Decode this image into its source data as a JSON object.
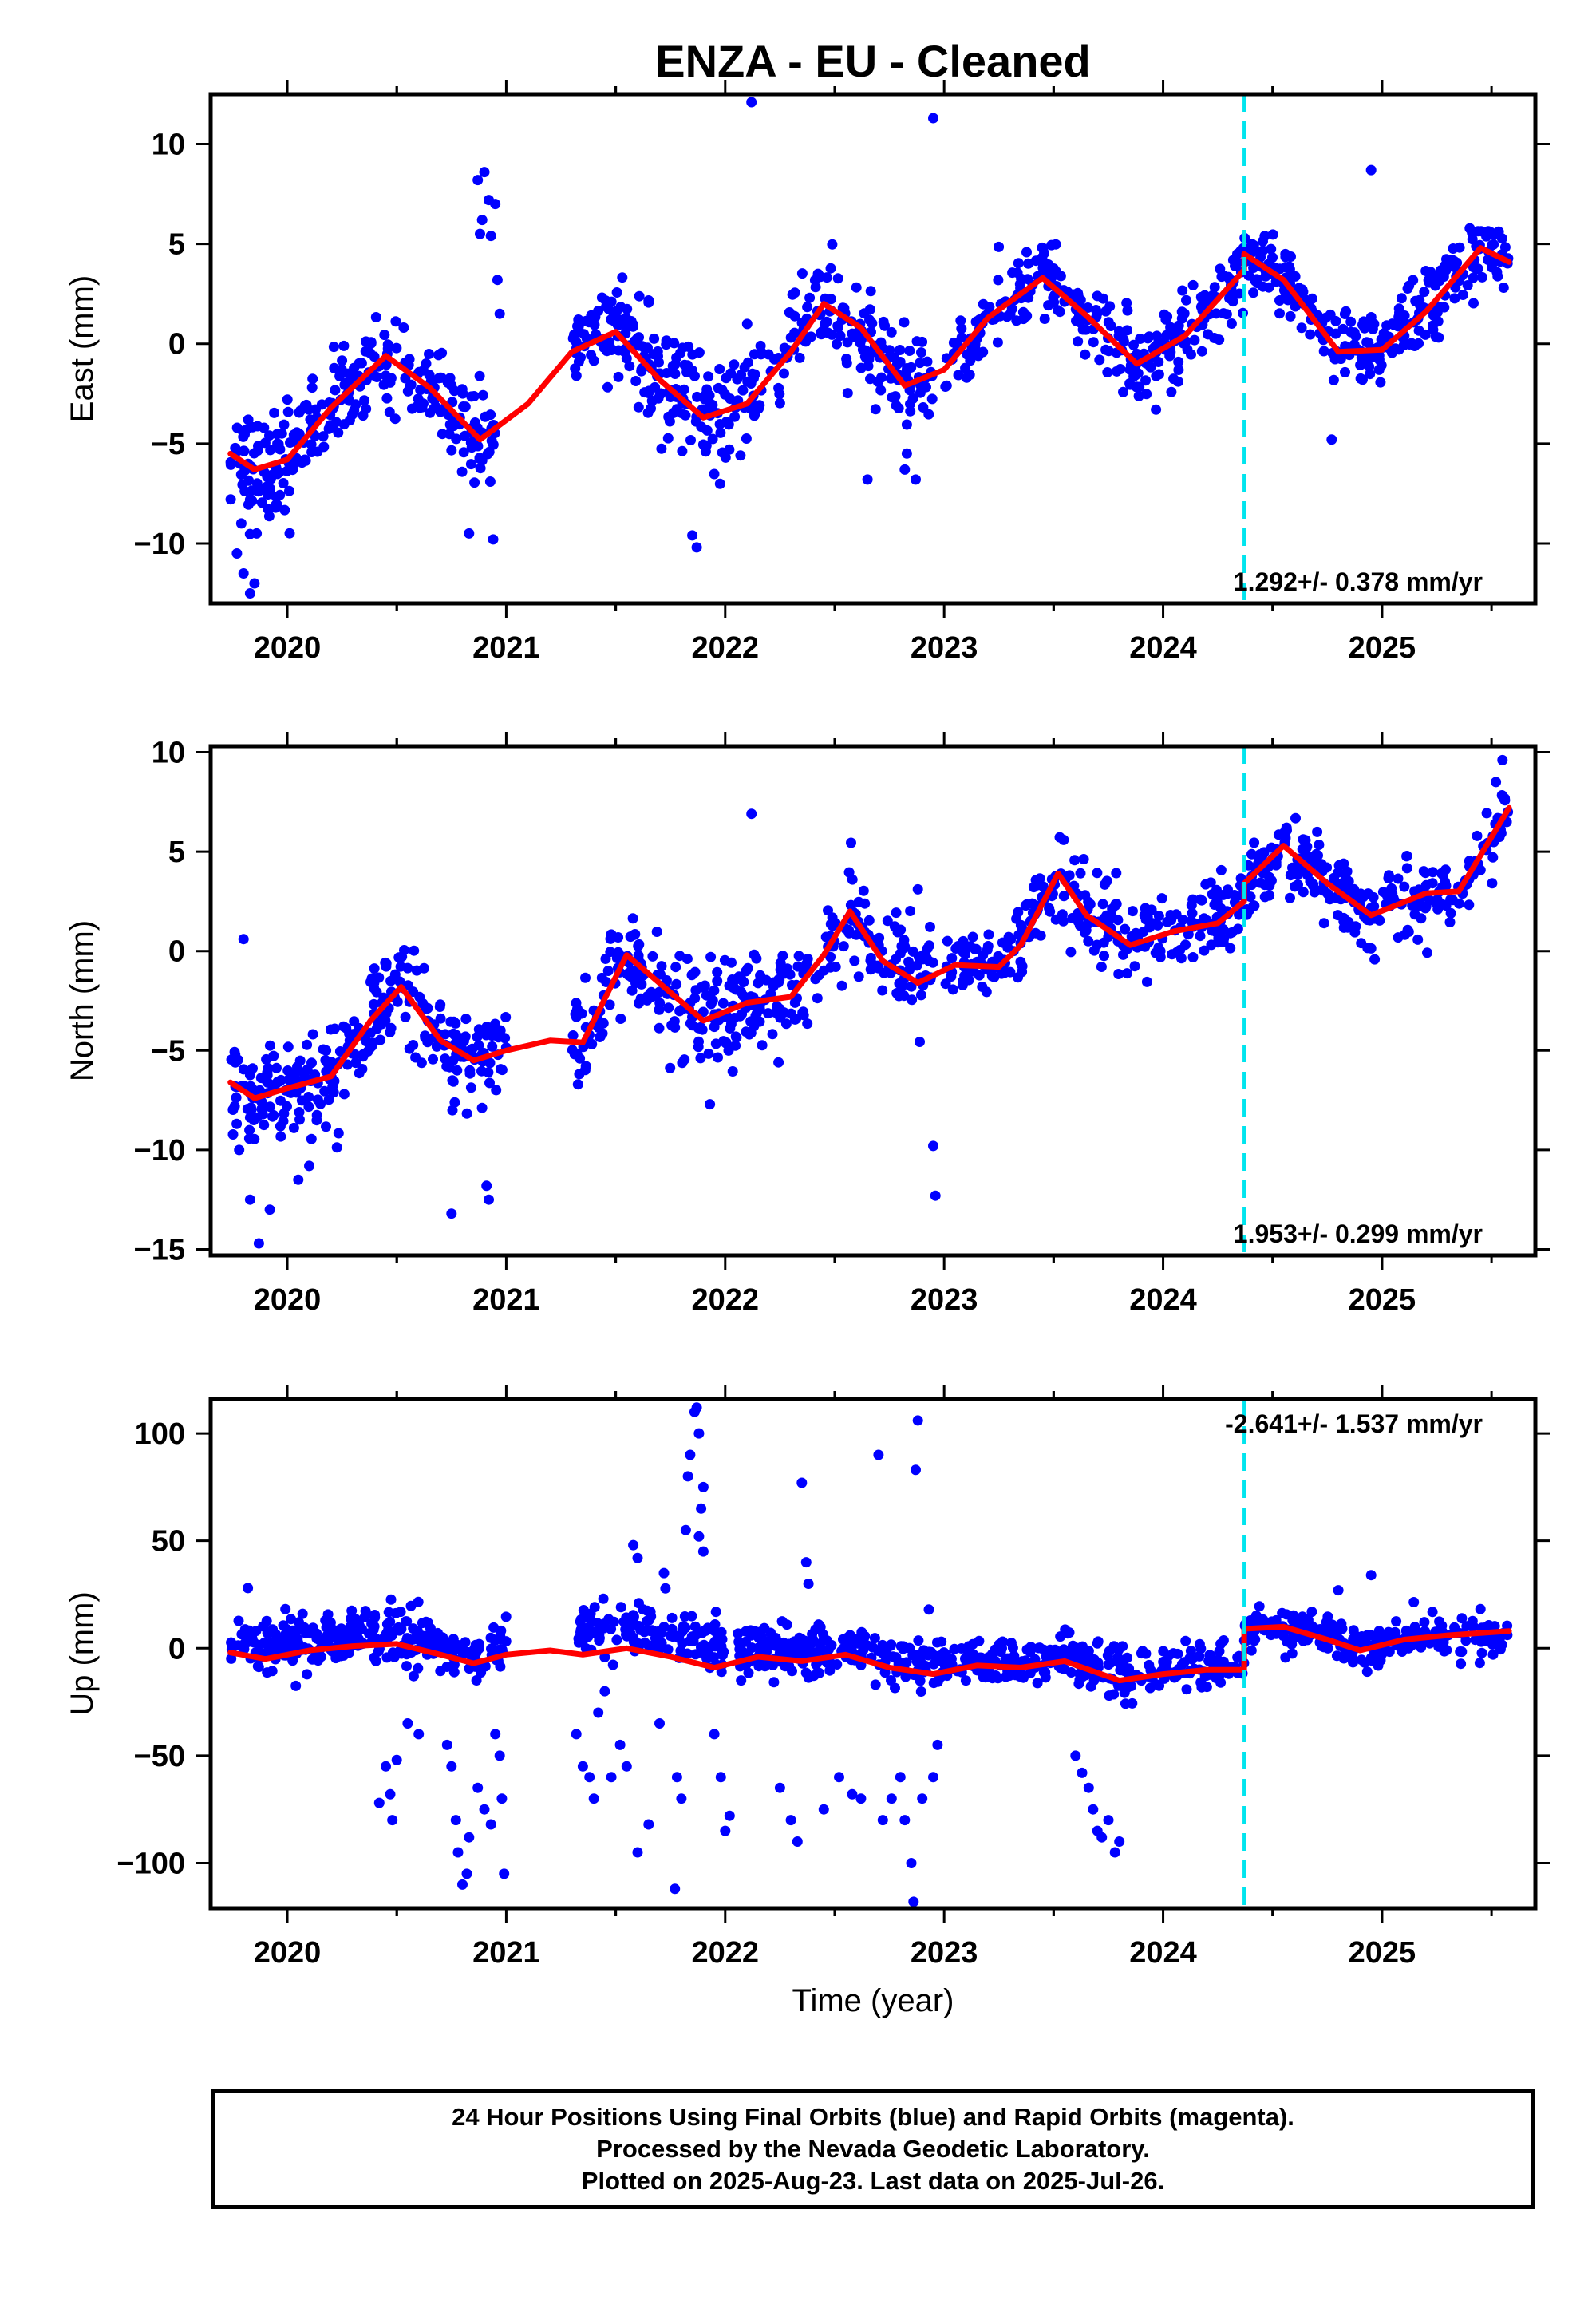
{
  "title": "ENZA  - EU - Cleaned",
  "xlabel": "Time (year)",
  "footer_lines": [
    "24 Hour Positions Using Final Orbits (blue) and Rapid Orbits (magenta).",
    "Processed by the Nevada Geodetic Laboratory.",
    "Plotted on 2025-Aug-23. Last data on 2025-Jul-26."
  ],
  "colors": {
    "points": "#0000ff",
    "model": "#ff0000",
    "event_line": "#00e5ee",
    "axes": "#000000"
  },
  "chart_data": [
    {
      "type": "scatter",
      "ylabel": "East (mm)",
      "rate_text": "1.292+/- 0.378 mm/yr",
      "xlim": [
        2019.65,
        2025.7
      ],
      "ylim": [
        -13,
        12.5
      ],
      "xticks": [
        2020,
        2021,
        2022,
        2023,
        2024,
        2025
      ],
      "yticks": [
        -10,
        -5,
        0,
        5,
        10
      ],
      "ytick_labels": [
        "−10",
        "−5",
        "0",
        "5",
        "10"
      ],
      "event_x": 2024.37,
      "model": {
        "x": [
          2019.74,
          2019.85,
          2020.0,
          2020.2,
          2020.45,
          2020.65,
          2020.88,
          2021.1,
          2021.3,
          2021.5,
          2021.7,
          2021.9,
          2022.1,
          2022.3,
          2022.45,
          2022.62,
          2022.82,
          2023.0,
          2023.2,
          2023.45,
          2023.65,
          2023.88,
          2024.1,
          2024.37,
          2024.37,
          2024.55,
          2024.8,
          2025.0,
          2025.2,
          2025.45,
          2025.58
        ],
        "y": [
          -5.5,
          -6.3,
          -5.8,
          -3.2,
          -0.6,
          -2.2,
          -4.8,
          -3.0,
          -0.4,
          0.6,
          -1.8,
          -3.7,
          -3.0,
          -0.4,
          2.0,
          0.8,
          -2.1,
          -1.3,
          1.3,
          3.3,
          1.4,
          -1.0,
          0.4,
          3.7,
          4.5,
          3.2,
          -0.4,
          -0.3,
          1.6,
          4.8,
          4.1
        ]
      },
      "clusters": [
        {
          "x0": 2019.74,
          "x1": 2020.0,
          "yoff": 0.0,
          "sd": 1.4,
          "n": 70
        },
        {
          "x0": 2020.0,
          "x1": 2020.95,
          "yoff": 0.0,
          "sd": 1.1,
          "n": 210
        },
        {
          "x0": 2021.3,
          "x1": 2021.57,
          "yoff": 0.3,
          "sd": 1.0,
          "n": 70
        },
        {
          "x0": 2021.57,
          "x1": 2022.0,
          "yoff": 0.0,
          "sd": 1.4,
          "n": 110
        },
        {
          "x0": 2022.0,
          "x1": 2022.95,
          "yoff": 0.0,
          "sd": 1.3,
          "n": 200
        },
        {
          "x0": 2023.0,
          "x1": 2024.37,
          "yoff": 0.0,
          "sd": 1.0,
          "n": 280
        },
        {
          "x0": 2024.37,
          "x1": 2025.58,
          "yoff": 0.0,
          "sd": 0.9,
          "n": 260
        }
      ],
      "outliers": [
        [
          2019.77,
          -10.5
        ],
        [
          2019.8,
          -11.5
        ],
        [
          2019.83,
          -12.5
        ],
        [
          2019.86,
          -9.5
        ],
        [
          2019.79,
          -9.0
        ],
        [
          2019.85,
          -12.0
        ],
        [
          2020.87,
          8.2
        ],
        [
          2020.9,
          8.6
        ],
        [
          2020.92,
          7.2
        ],
        [
          2020.95,
          7.0
        ],
        [
          2020.88,
          5.5
        ],
        [
          2020.93,
          5.4
        ],
        [
          2020.96,
          3.2
        ],
        [
          2020.97,
          1.5
        ],
        [
          2020.89,
          6.2
        ],
        [
          2020.83,
          -9.5
        ],
        [
          2020.94,
          -9.8
        ],
        [
          2021.85,
          -9.6
        ],
        [
          2021.87,
          -10.2
        ],
        [
          2022.12,
          12.1
        ],
        [
          2022.95,
          11.3
        ],
        [
          2022.65,
          -6.8
        ],
        [
          2022.82,
          -6.3
        ],
        [
          2022.87,
          -6.8
        ],
        [
          2024.95,
          8.7
        ],
        [
          2024.77,
          -4.8
        ]
      ]
    },
    {
      "type": "scatter",
      "ylabel": "North (mm)",
      "rate_text": "1.953+/- 0.299 mm/yr",
      "xlim": [
        2019.65,
        2025.7
      ],
      "ylim": [
        -15.3,
        10.3
      ],
      "xticks": [
        2020,
        2021,
        2022,
        2023,
        2024,
        2025
      ],
      "yticks": [
        -15,
        -10,
        -5,
        0,
        5,
        10
      ],
      "ytick_labels": [
        "−15",
        "−10",
        "−5",
        "0",
        "5",
        "10"
      ],
      "event_x": 2024.37,
      "model": {
        "x": [
          2019.74,
          2019.85,
          2020.0,
          2020.2,
          2020.38,
          2020.52,
          2020.7,
          2020.85,
          2021.0,
          2021.2,
          2021.35,
          2021.55,
          2021.72,
          2021.9,
          2022.1,
          2022.3,
          2022.45,
          2022.57,
          2022.72,
          2022.88,
          2023.05,
          2023.25,
          2023.35,
          2023.52,
          2023.65,
          2023.85,
          2024.05,
          2024.25,
          2024.37,
          2024.37,
          2024.55,
          2024.75,
          2024.95,
          2025.2,
          2025.35,
          2025.58
        ],
        "y": [
          -6.6,
          -7.4,
          -6.9,
          -6.3,
          -3.5,
          -1.8,
          -4.5,
          -5.5,
          -5.0,
          -4.5,
          -4.6,
          -0.2,
          -1.8,
          -3.5,
          -2.6,
          -2.3,
          -0.2,
          2.0,
          -0.5,
          -1.6,
          -0.7,
          -0.8,
          0.3,
          3.9,
          1.8,
          0.3,
          1.0,
          1.4,
          2.5,
          3.4,
          5.3,
          3.4,
          1.8,
          2.9,
          3.0,
          7.2
        ]
      },
      "clusters": [
        {
          "x0": 2019.74,
          "x1": 2020.2,
          "yoff": 0.0,
          "sd": 1.1,
          "n": 110
        },
        {
          "x0": 2020.2,
          "x1": 2021.0,
          "yoff": 0.0,
          "sd": 1.2,
          "n": 170
        },
        {
          "x0": 2021.3,
          "x1": 2022.0,
          "yoff": 0.0,
          "sd": 1.3,
          "n": 150
        },
        {
          "x0": 2022.0,
          "x1": 2022.95,
          "yoff": 0.0,
          "sd": 1.3,
          "n": 200
        },
        {
          "x0": 2023.0,
          "x1": 2024.37,
          "yoff": 0.0,
          "sd": 1.0,
          "n": 280
        },
        {
          "x0": 2024.37,
          "x1": 2025.58,
          "yoff": 0.0,
          "sd": 0.9,
          "n": 260
        }
      ],
      "outliers": [
        [
          2019.8,
          0.6
        ],
        [
          2019.83,
          -12.5
        ],
        [
          2019.87,
          -14.7
        ],
        [
          2019.92,
          -13.0
        ],
        [
          2019.78,
          -10.0
        ],
        [
          2020.05,
          -11.5
        ],
        [
          2020.1,
          -10.8
        ],
        [
          2020.75,
          -13.2
        ],
        [
          2020.92,
          -12.5
        ],
        [
          2020.91,
          -11.8
        ],
        [
          2021.93,
          -7.7
        ],
        [
          2022.12,
          6.9
        ],
        [
          2022.88,
          3.1
        ],
        [
          2022.95,
          -9.8
        ],
        [
          2022.96,
          -12.3
        ],
        [
          2025.55,
          9.6
        ],
        [
          2025.52,
          8.5
        ]
      ]
    },
    {
      "type": "scatter",
      "ylabel": "Up (mm)",
      "rate_text": "-2.641+/- 1.537 mm/yr",
      "xlim": [
        2019.65,
        2025.7
      ],
      "ylim": [
        -121,
        116
      ],
      "xticks": [
        2020,
        2021,
        2022,
        2023,
        2024,
        2025
      ],
      "yticks": [
        -100,
        -50,
        0,
        50,
        100
      ],
      "ytick_labels": [
        "−100",
        "−50",
        "0",
        "50",
        "100"
      ],
      "event_x": 2024.37,
      "model": {
        "x": [
          2019.74,
          2019.9,
          2020.1,
          2020.3,
          2020.5,
          2020.7,
          2020.85,
          2021.0,
          2021.2,
          2021.35,
          2021.55,
          2021.75,
          2021.95,
          2022.15,
          2022.35,
          2022.55,
          2022.75,
          2022.95,
          2023.15,
          2023.35,
          2023.55,
          2023.8,
          2024.0,
          2024.2,
          2024.37,
          2024.37,
          2024.55,
          2024.75,
          2024.9,
          2025.1,
          2025.3,
          2025.58
        ],
        "y": [
          -2,
          -5,
          -1,
          1,
          2,
          -3,
          -7,
          -3,
          -1,
          -3,
          0,
          -4,
          -9,
          -4,
          -6,
          -3,
          -9,
          -12,
          -8,
          -9,
          -6,
          -15,
          -12,
          -10,
          -10,
          9,
          10,
          4,
          -1,
          4,
          6,
          8
        ]
      },
      "clusters": [
        {
          "x0": 2019.74,
          "x1": 2021.0,
          "yoff": 5.0,
          "sd": 6.0,
          "n": 300
        },
        {
          "x0": 2021.33,
          "x1": 2022.0,
          "yoff": 10.0,
          "sd": 6.0,
          "n": 150
        },
        {
          "x0": 2022.05,
          "x1": 2023.0,
          "yoff": 4.0,
          "sd": 6.0,
          "n": 220
        },
        {
          "x0": 2023.0,
          "x1": 2024.37,
          "yoff": 2.0,
          "sd": 5.5,
          "n": 280
        },
        {
          "x0": 2024.37,
          "x1": 2025.58,
          "yoff": 0.0,
          "sd": 4.5,
          "n": 260
        }
      ],
      "outliers": [
        [
          2019.82,
          28
        ],
        [
          2020.42,
          -72
        ],
        [
          2020.45,
          -55
        ],
        [
          2020.47,
          -68
        ],
        [
          2020.48,
          -80
        ],
        [
          2020.5,
          -52
        ],
        [
          2020.55,
          -35
        ],
        [
          2020.6,
          -40
        ],
        [
          2020.73,
          -45
        ],
        [
          2020.75,
          -55
        ],
        [
          2020.77,
          -80
        ],
        [
          2020.78,
          -95
        ],
        [
          2020.8,
          -110
        ],
        [
          2020.82,
          -105
        ],
        [
          2020.83,
          -88
        ],
        [
          2020.87,
          -65
        ],
        [
          2020.9,
          -75
        ],
        [
          2020.93,
          -82
        ],
        [
          2020.95,
          -40
        ],
        [
          2020.97,
          -50
        ],
        [
          2020.98,
          -70
        ],
        [
          2020.99,
          -105
        ],
        [
          2021.32,
          -40
        ],
        [
          2021.35,
          -55
        ],
        [
          2021.38,
          -60
        ],
        [
          2021.4,
          -70
        ],
        [
          2021.42,
          -30
        ],
        [
          2021.45,
          -20
        ],
        [
          2021.48,
          -60
        ],
        [
          2021.52,
          -45
        ],
        [
          2021.55,
          -55
        ],
        [
          2021.6,
          -95
        ],
        [
          2021.65,
          -82
        ],
        [
          2021.7,
          -35
        ],
        [
          2021.72,
          35
        ],
        [
          2021.58,
          48
        ],
        [
          2021.6,
          42
        ],
        [
          2021.77,
          -112
        ],
        [
          2021.78,
          -60
        ],
        [
          2021.8,
          -70
        ],
        [
          2021.82,
          55
        ],
        [
          2021.83,
          80
        ],
        [
          2021.84,
          90
        ],
        [
          2021.86,
          110
        ],
        [
          2021.87,
          112
        ],
        [
          2021.88,
          100
        ],
        [
          2021.9,
          75
        ],
        [
          2021.89,
          65
        ],
        [
          2021.88,
          52
        ],
        [
          2021.9,
          45
        ],
        [
          2021.95,
          -40
        ],
        [
          2021.98,
          -60
        ],
        [
          2022.0,
          -85
        ],
        [
          2022.02,
          -78
        ],
        [
          2022.25,
          -65
        ],
        [
          2022.3,
          -80
        ],
        [
          2022.33,
          -90
        ],
        [
          2022.35,
          77
        ],
        [
          2022.37,
          40
        ],
        [
          2022.38,
          30
        ],
        [
          2022.45,
          -75
        ],
        [
          2022.52,
          -60
        ],
        [
          2022.58,
          -68
        ],
        [
          2022.62,
          -70
        ],
        [
          2022.7,
          90
        ],
        [
          2022.72,
          -80
        ],
        [
          2022.76,
          -70
        ],
        [
          2022.8,
          -60
        ],
        [
          2022.82,
          -80
        ],
        [
          2022.85,
          -100
        ],
        [
          2022.86,
          -118
        ],
        [
          2022.87,
          83
        ],
        [
          2022.88,
          106
        ],
        [
          2022.9,
          -70
        ],
        [
          2022.93,
          18
        ],
        [
          2022.95,
          -60
        ],
        [
          2022.97,
          -45
        ],
        [
          2023.6,
          -50
        ],
        [
          2023.63,
          -58
        ],
        [
          2023.66,
          -65
        ],
        [
          2023.68,
          -75
        ],
        [
          2023.7,
          -85
        ],
        [
          2023.72,
          -88
        ],
        [
          2023.75,
          -80
        ],
        [
          2023.78,
          -95
        ],
        [
          2023.8,
          -90
        ],
        [
          2024.8,
          27
        ],
        [
          2024.95,
          34
        ]
      ]
    }
  ]
}
